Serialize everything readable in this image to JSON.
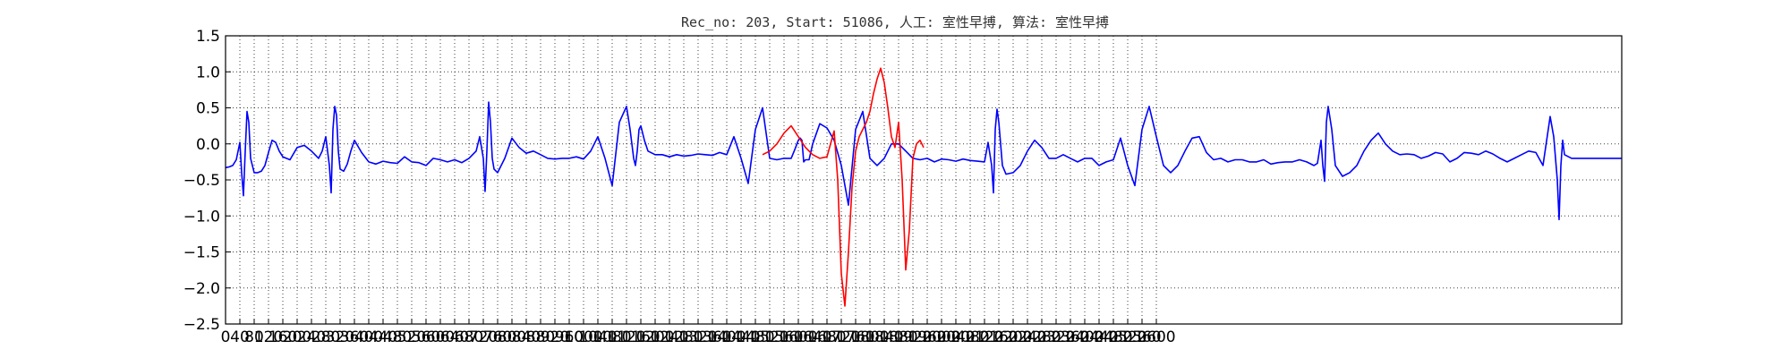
{
  "chart_data": {
    "type": "line",
    "title": "Rec_no: 203, Start: 51086, 人工: 室性早搏, 算法: 室性早搏",
    "xlabel": "",
    "ylabel": "",
    "xlim": [
      0,
      3900
    ],
    "ylim": [
      -2.5,
      1.5
    ],
    "grid": true,
    "x_ticks": [
      0,
      40,
      80,
      120,
      160,
      200,
      240,
      280,
      320,
      360,
      400,
      440,
      480,
      520,
      560,
      600,
      640,
      680,
      720,
      760,
      800,
      840,
      880,
      920,
      960,
      1000,
      1040,
      1080,
      1120,
      1160,
      1200,
      1240,
      1280,
      1320,
      1360,
      1400,
      1440,
      1480,
      1520,
      1560,
      1600,
      1640,
      1680,
      1720,
      1760,
      1800,
      1840,
      1880,
      1920,
      1960,
      2000,
      2040,
      2080,
      2120,
      2160,
      2200,
      2240,
      2280,
      2320,
      2360,
      2400,
      2440,
      2480,
      2520,
      2560,
      2600
    ],
    "y_ticks": [
      1.5,
      1.0,
      0.5,
      0.0,
      -0.5,
      -1.0,
      -1.5,
      -2.0,
      -2.5
    ],
    "y_tick_labels": [
      "1.5",
      "1.0",
      "0.5",
      "0.0",
      "−0.5",
      "−1.0",
      "−1.5",
      "−2.0",
      "−2.5"
    ],
    "x_tick_labels": [
      "0",
      "40",
      "80",
      "120",
      "160",
      "200",
      "240",
      "280",
      "320",
      "360",
      "400",
      "440",
      "480",
      "520",
      "560",
      "600",
      "640",
      "680",
      "720",
      "760",
      "800",
      "840",
      "880",
      "920",
      "960",
      "1000",
      "1040",
      "1080",
      "1120",
      "1160",
      "1200",
      "1240",
      "1280",
      "1320",
      "1360",
      "1400",
      "1440",
      "1480",
      "1520",
      "1560",
      "1600",
      "1640",
      "1680",
      "1720",
      "1760",
      "1800",
      "1840",
      "1880",
      "1920",
      "1960",
      "2000",
      "2040",
      "2080",
      "2120",
      "2160",
      "2200",
      "2240",
      "2280",
      "2320",
      "2360",
      "2400",
      "2440",
      "2480",
      "2520",
      "2560",
      "2600"
    ],
    "series": [
      {
        "color": "#0000ff",
        "x": [
          0,
          10,
          20,
          30,
          40,
          45,
          50,
          55,
          60,
          65,
          70,
          80,
          90,
          100,
          110,
          120,
          130,
          140,
          150,
          160,
          180,
          200,
          220,
          240,
          260,
          270,
          280,
          290,
          295,
          300,
          305,
          310,
          315,
          320,
          330,
          340,
          350,
          360,
          380,
          400,
          420,
          440,
          460,
          480,
          500,
          520,
          540,
          560,
          580,
          600,
          620,
          640,
          660,
          680,
          700,
          710,
          720,
          725,
          730,
          735,
          740,
          745,
          750,
          760,
          780,
          800,
          820,
          840,
          860,
          880,
          900,
          920,
          940,
          960,
          980,
          1000,
          1020,
          1040,
          1060,
          1080,
          1100,
          1120,
          1130,
          1140,
          1145,
          1150,
          1155,
          1160,
          1170,
          1180,
          1200,
          1220,
          1240,
          1260,
          1280,
          1300,
          1320,
          1340,
          1360,
          1380,
          1400,
          1420,
          1440,
          1460,
          1480,
          1500,
          1520,
          1540,
          1560,
          1580,
          1590,
          1600,
          1605,
          1610,
          1615,
          1620,
          1630,
          1640,
          1660,
          1680,
          1700,
          1720,
          1740,
          1760,
          1780,
          1800,
          1820,
          1840,
          1860,
          1880,
          1900,
          1920,
          1940,
          1960,
          1980,
          2000,
          2020,
          2040,
          2060,
          2080,
          2100,
          2120,
          2130,
          2140,
          2145,
          2150,
          2155,
          2160,
          2170,
          2180,
          2200,
          2220,
          2240,
          2260,
          2280,
          2300,
          2320,
          2340,
          2360,
          2380,
          2400,
          2420,
          2440,
          2460,
          2480,
          2500,
          2520,
          2540,
          2560,
          2580,
          2600,
          2620,
          2640,
          2660,
          2680,
          2700,
          2720,
          2740,
          2760,
          2780,
          2800,
          2820,
          2840,
          2860,
          2880,
          2900,
          2920,
          2940,
          2960,
          2980,
          3000,
          3020,
          3040,
          3050,
          3060,
          3065,
          3070,
          3075,
          3080,
          3090,
          3100,
          3120,
          3140,
          3160,
          3180,
          3200,
          3220,
          3240,
          3260,
          3280,
          3300,
          3320,
          3340,
          3360,
          3380,
          3400,
          3420,
          3440,
          3460,
          3480,
          3500,
          3520,
          3540,
          3560,
          3580,
          3600,
          3620,
          3640,
          3660,
          3680,
          3700,
          3710,
          3720,
          3725,
          3730,
          3735,
          3740,
          3760,
          3780,
          3800,
          3820,
          3840,
          3860,
          3880,
          3900
        ],
        "y": [
          -0.33,
          -0.32,
          -0.3,
          -0.22,
          0.02,
          -0.4,
          -0.72,
          -0.1,
          0.45,
          0.3,
          -0.2,
          -0.4,
          -0.4,
          -0.38,
          -0.3,
          -0.12,
          0.05,
          0.02,
          -0.1,
          -0.18,
          -0.22,
          -0.05,
          -0.02,
          -0.1,
          -0.2,
          -0.1,
          0.1,
          -0.3,
          -0.68,
          0.2,
          0.52,
          0.4,
          -0.1,
          -0.35,
          -0.38,
          -0.28,
          -0.1,
          0.05,
          -0.12,
          -0.25,
          -0.28,
          -0.24,
          -0.26,
          -0.27,
          -0.18,
          -0.25,
          -0.26,
          -0.3,
          -0.2,
          -0.22,
          -0.25,
          -0.22,
          -0.26,
          -0.2,
          -0.1,
          0.1,
          -0.2,
          -0.66,
          -0.1,
          0.58,
          0.3,
          -0.2,
          -0.35,
          -0.4,
          -0.2,
          0.08,
          -0.05,
          -0.13,
          -0.1,
          -0.15,
          -0.2,
          -0.21,
          -0.2,
          -0.2,
          -0.18,
          -0.21,
          -0.1,
          0.1,
          -0.2,
          -0.58,
          0.3,
          0.52,
          0.2,
          -0.2,
          -0.3,
          -0.1,
          0.2,
          0.25,
          0.05,
          -0.1,
          -0.15,
          -0.15,
          -0.18,
          -0.15,
          -0.17,
          -0.16,
          -0.14,
          -0.15,
          -0.16,
          -0.12,
          -0.15,
          0.1,
          -0.2,
          -0.55,
          0.2,
          0.5,
          -0.2,
          -0.22,
          -0.2,
          -0.2,
          -0.08,
          0.05,
          0.08,
          0.05,
          -0.25,
          -0.22,
          -0.22,
          0.0,
          0.28,
          0.22,
          0.05,
          -0.3,
          -0.85,
          0.2,
          0.45,
          -0.2,
          -0.3,
          -0.2,
          0.0,
          0.0,
          -0.1,
          -0.2,
          -0.22,
          -0.2,
          -0.25,
          -0.21,
          -0.22,
          -0.24,
          -0.21,
          -0.23,
          -0.24,
          -0.25,
          0.02,
          -0.3,
          -0.68,
          0.2,
          0.48,
          0.3,
          -0.3,
          -0.42,
          -0.4,
          -0.3,
          -0.1,
          0.05,
          -0.05,
          -0.2,
          -0.2,
          -0.15,
          -0.2,
          -0.25,
          -0.2,
          -0.2,
          -0.3,
          -0.25,
          -0.22,
          0.08,
          -0.3,
          -0.58,
          0.2,
          0.52,
          0.1,
          -0.3,
          -0.4,
          -0.3,
          -0.1,
          0.08,
          0.1,
          -0.12,
          -0.22,
          -0.2,
          -0.25,
          -0.22,
          -0.22,
          -0.25,
          -0.25,
          -0.22,
          -0.28,
          -0.26,
          -0.25,
          -0.25,
          -0.22,
          -0.25,
          -0.3,
          -0.27,
          0.05,
          -0.3,
          -0.52,
          0.3,
          0.52,
          0.2,
          -0.3,
          -0.45,
          -0.4,
          -0.3,
          -0.1,
          0.05,
          0.15,
          0.0,
          -0.1,
          -0.15,
          -0.14,
          -0.15,
          -0.2,
          -0.17,
          -0.12,
          -0.14,
          -0.25,
          -0.2,
          -0.12,
          -0.13,
          -0.15,
          -0.1,
          -0.14,
          -0.2,
          -0.25,
          -0.2,
          -0.15,
          -0.1,
          -0.12,
          -0.3,
          0.38,
          0.1,
          -0.5,
          -1.05,
          -0.3,
          0.05,
          -0.15,
          -0.2,
          -0.2,
          -0.2,
          -0.2,
          -0.2,
          -0.2,
          -0.2,
          -0.2
        ]
      },
      {
        "color": "#ff0000",
        "x": [
          1500,
          1520,
          1540,
          1560,
          1580,
          1600,
          1620,
          1640,
          1660,
          1680,
          1700,
          1710,
          1720,
          1730,
          1740,
          1750,
          1760,
          1770,
          1780,
          1790,
          1800,
          1810,
          1820,
          1830,
          1840,
          1850,
          1860,
          1870,
          1880,
          1890,
          1900,
          1910,
          1920,
          1930,
          1940,
          1950
        ],
        "y": [
          -0.15,
          -0.1,
          0.0,
          0.15,
          0.25,
          0.1,
          -0.05,
          -0.15,
          -0.2,
          -0.18,
          0.18,
          -0.5,
          -1.8,
          -2.25,
          -1.5,
          -0.6,
          -0.1,
          0.1,
          0.2,
          0.3,
          0.45,
          0.7,
          0.9,
          1.05,
          0.85,
          0.5,
          0.1,
          -0.05,
          0.3,
          -0.5,
          -1.75,
          -1.2,
          -0.2,
          0.0,
          0.05,
          -0.05
        ]
      }
    ]
  }
}
